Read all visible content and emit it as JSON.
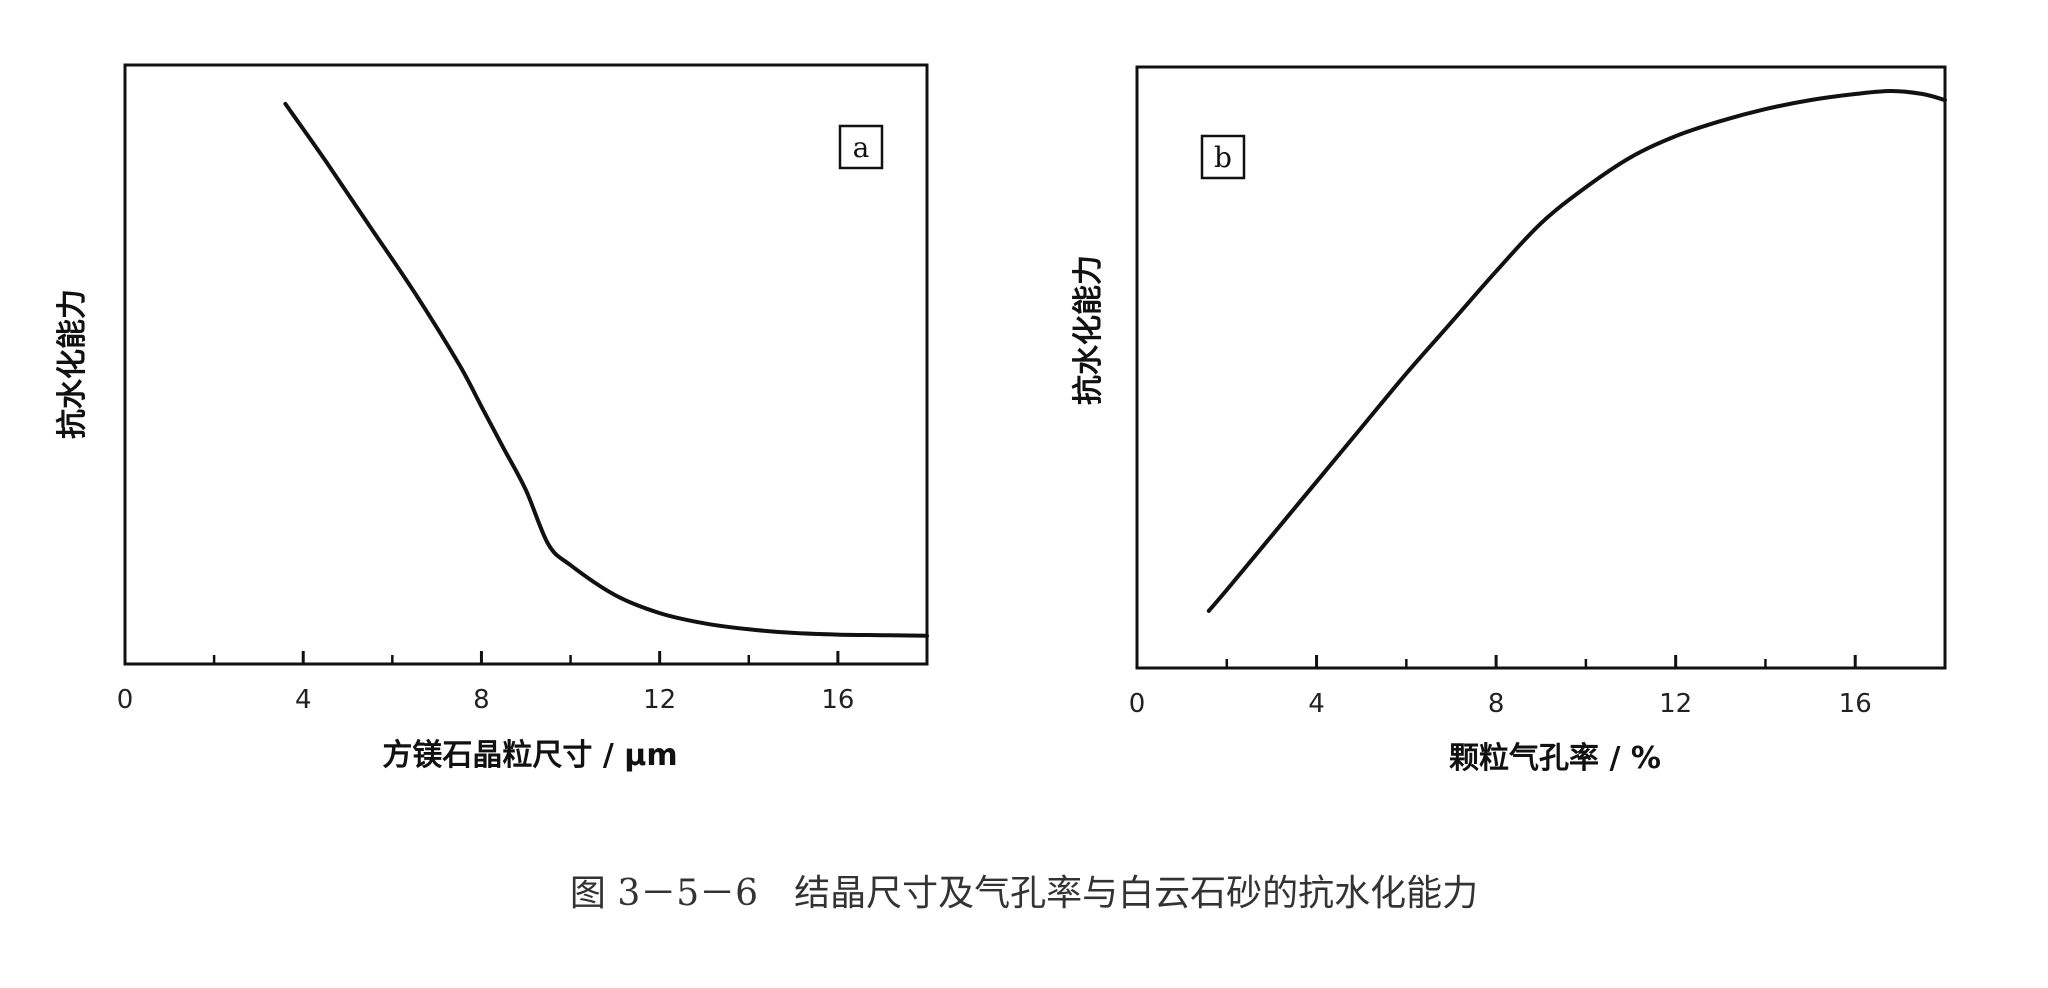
{
  "caption": "图 3－5－6　结晶尺寸及气孔率与白云石砂的抗水化能力",
  "chart_data": [
    {
      "type": "line",
      "panel": "a",
      "xlabel": "方镁石晶粒尺寸 / μm",
      "ylabel": "抗水化能力",
      "xlim": [
        0,
        18
      ],
      "ylim": [
        0,
        1
      ],
      "xticks": [
        0,
        4,
        8,
        12,
        16
      ],
      "xminorticks": [
        2,
        6,
        10,
        14
      ],
      "yticks_labeled": false,
      "grid": false,
      "series": [
        {
          "x": [
            3.6,
            4.5,
            5.5,
            6.5,
            7.5,
            8.0,
            8.5,
            9.0,
            9.5,
            10.0,
            11.0,
            12.0,
            13.0,
            14.0,
            15.0,
            16.0,
            17.0,
            18.0
          ],
          "y": [
            0.935,
            0.84,
            0.73,
            0.62,
            0.5,
            0.43,
            0.36,
            0.29,
            0.2,
            0.165,
            0.115,
            0.085,
            0.068,
            0.058,
            0.052,
            0.049,
            0.048,
            0.047
          ]
        }
      ]
    },
    {
      "type": "line",
      "panel": "b",
      "xlabel": "颗粒气孔率 / %",
      "ylabel": "抗水化能力",
      "xlim": [
        0,
        18
      ],
      "ylim": [
        0,
        1
      ],
      "xticks": [
        0,
        4,
        8,
        12,
        16
      ],
      "xminorticks": [
        2,
        6,
        10,
        14
      ],
      "yticks_labeled": false,
      "grid": false,
      "series": [
        {
          "x": [
            1.6,
            2.0,
            3.0,
            4.0,
            5.0,
            6.0,
            7.0,
            8.0,
            9.0,
            10.0,
            11.0,
            12.0,
            13.0,
            14.0,
            15.0,
            16.0,
            16.8,
            17.5,
            18.0
          ],
          "y": [
            0.095,
            0.13,
            0.22,
            0.31,
            0.4,
            0.49,
            0.575,
            0.66,
            0.74,
            0.8,
            0.85,
            0.885,
            0.91,
            0.93,
            0.945,
            0.955,
            0.96,
            0.955,
            0.945
          ]
        }
      ]
    }
  ]
}
